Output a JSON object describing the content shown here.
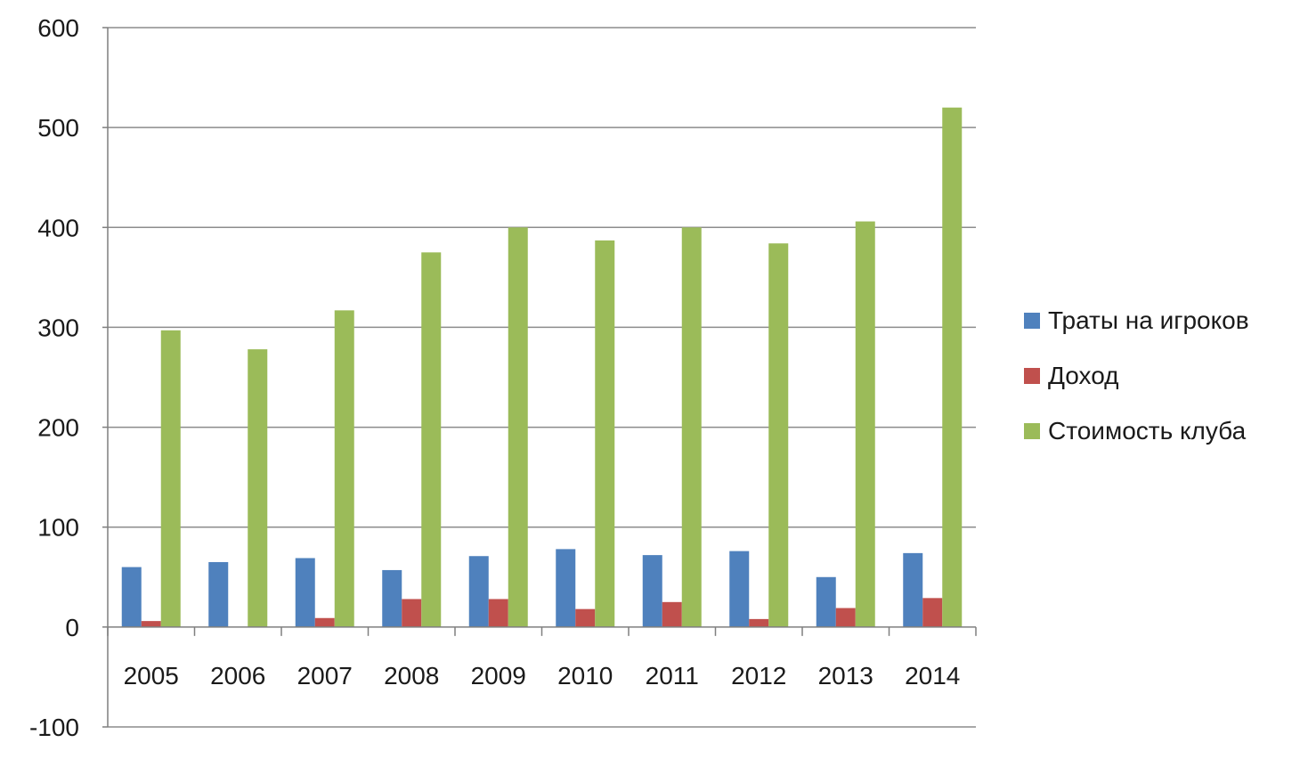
{
  "chart_data": {
    "type": "bar",
    "title": "",
    "xlabel": "",
    "ylabel": "",
    "categories": [
      "2005",
      "2006",
      "2007",
      "2008",
      "2009",
      "2010",
      "2011",
      "2012",
      "2013",
      "2014"
    ],
    "series": [
      {
        "name": "Траты на игроков",
        "color": "#4f81bd",
        "values": [
          60,
          65,
          69,
          57,
          71,
          78,
          72,
          76,
          50,
          74
        ]
      },
      {
        "name": "Доход",
        "color": "#c0504d",
        "values": [
          6,
          0,
          9,
          28,
          28,
          18,
          25,
          8,
          19,
          29
        ]
      },
      {
        "name": "Стоимость клуба",
        "color": "#9bbb59",
        "values": [
          297,
          278,
          317,
          375,
          400,
          387,
          400,
          384,
          406,
          520
        ]
      }
    ],
    "ylim": [
      -100,
      600
    ],
    "yticks": [
      "-100",
      "0",
      "100",
      "200",
      "300",
      "400",
      "500",
      "600"
    ],
    "grid": true,
    "legend_position": "right"
  }
}
